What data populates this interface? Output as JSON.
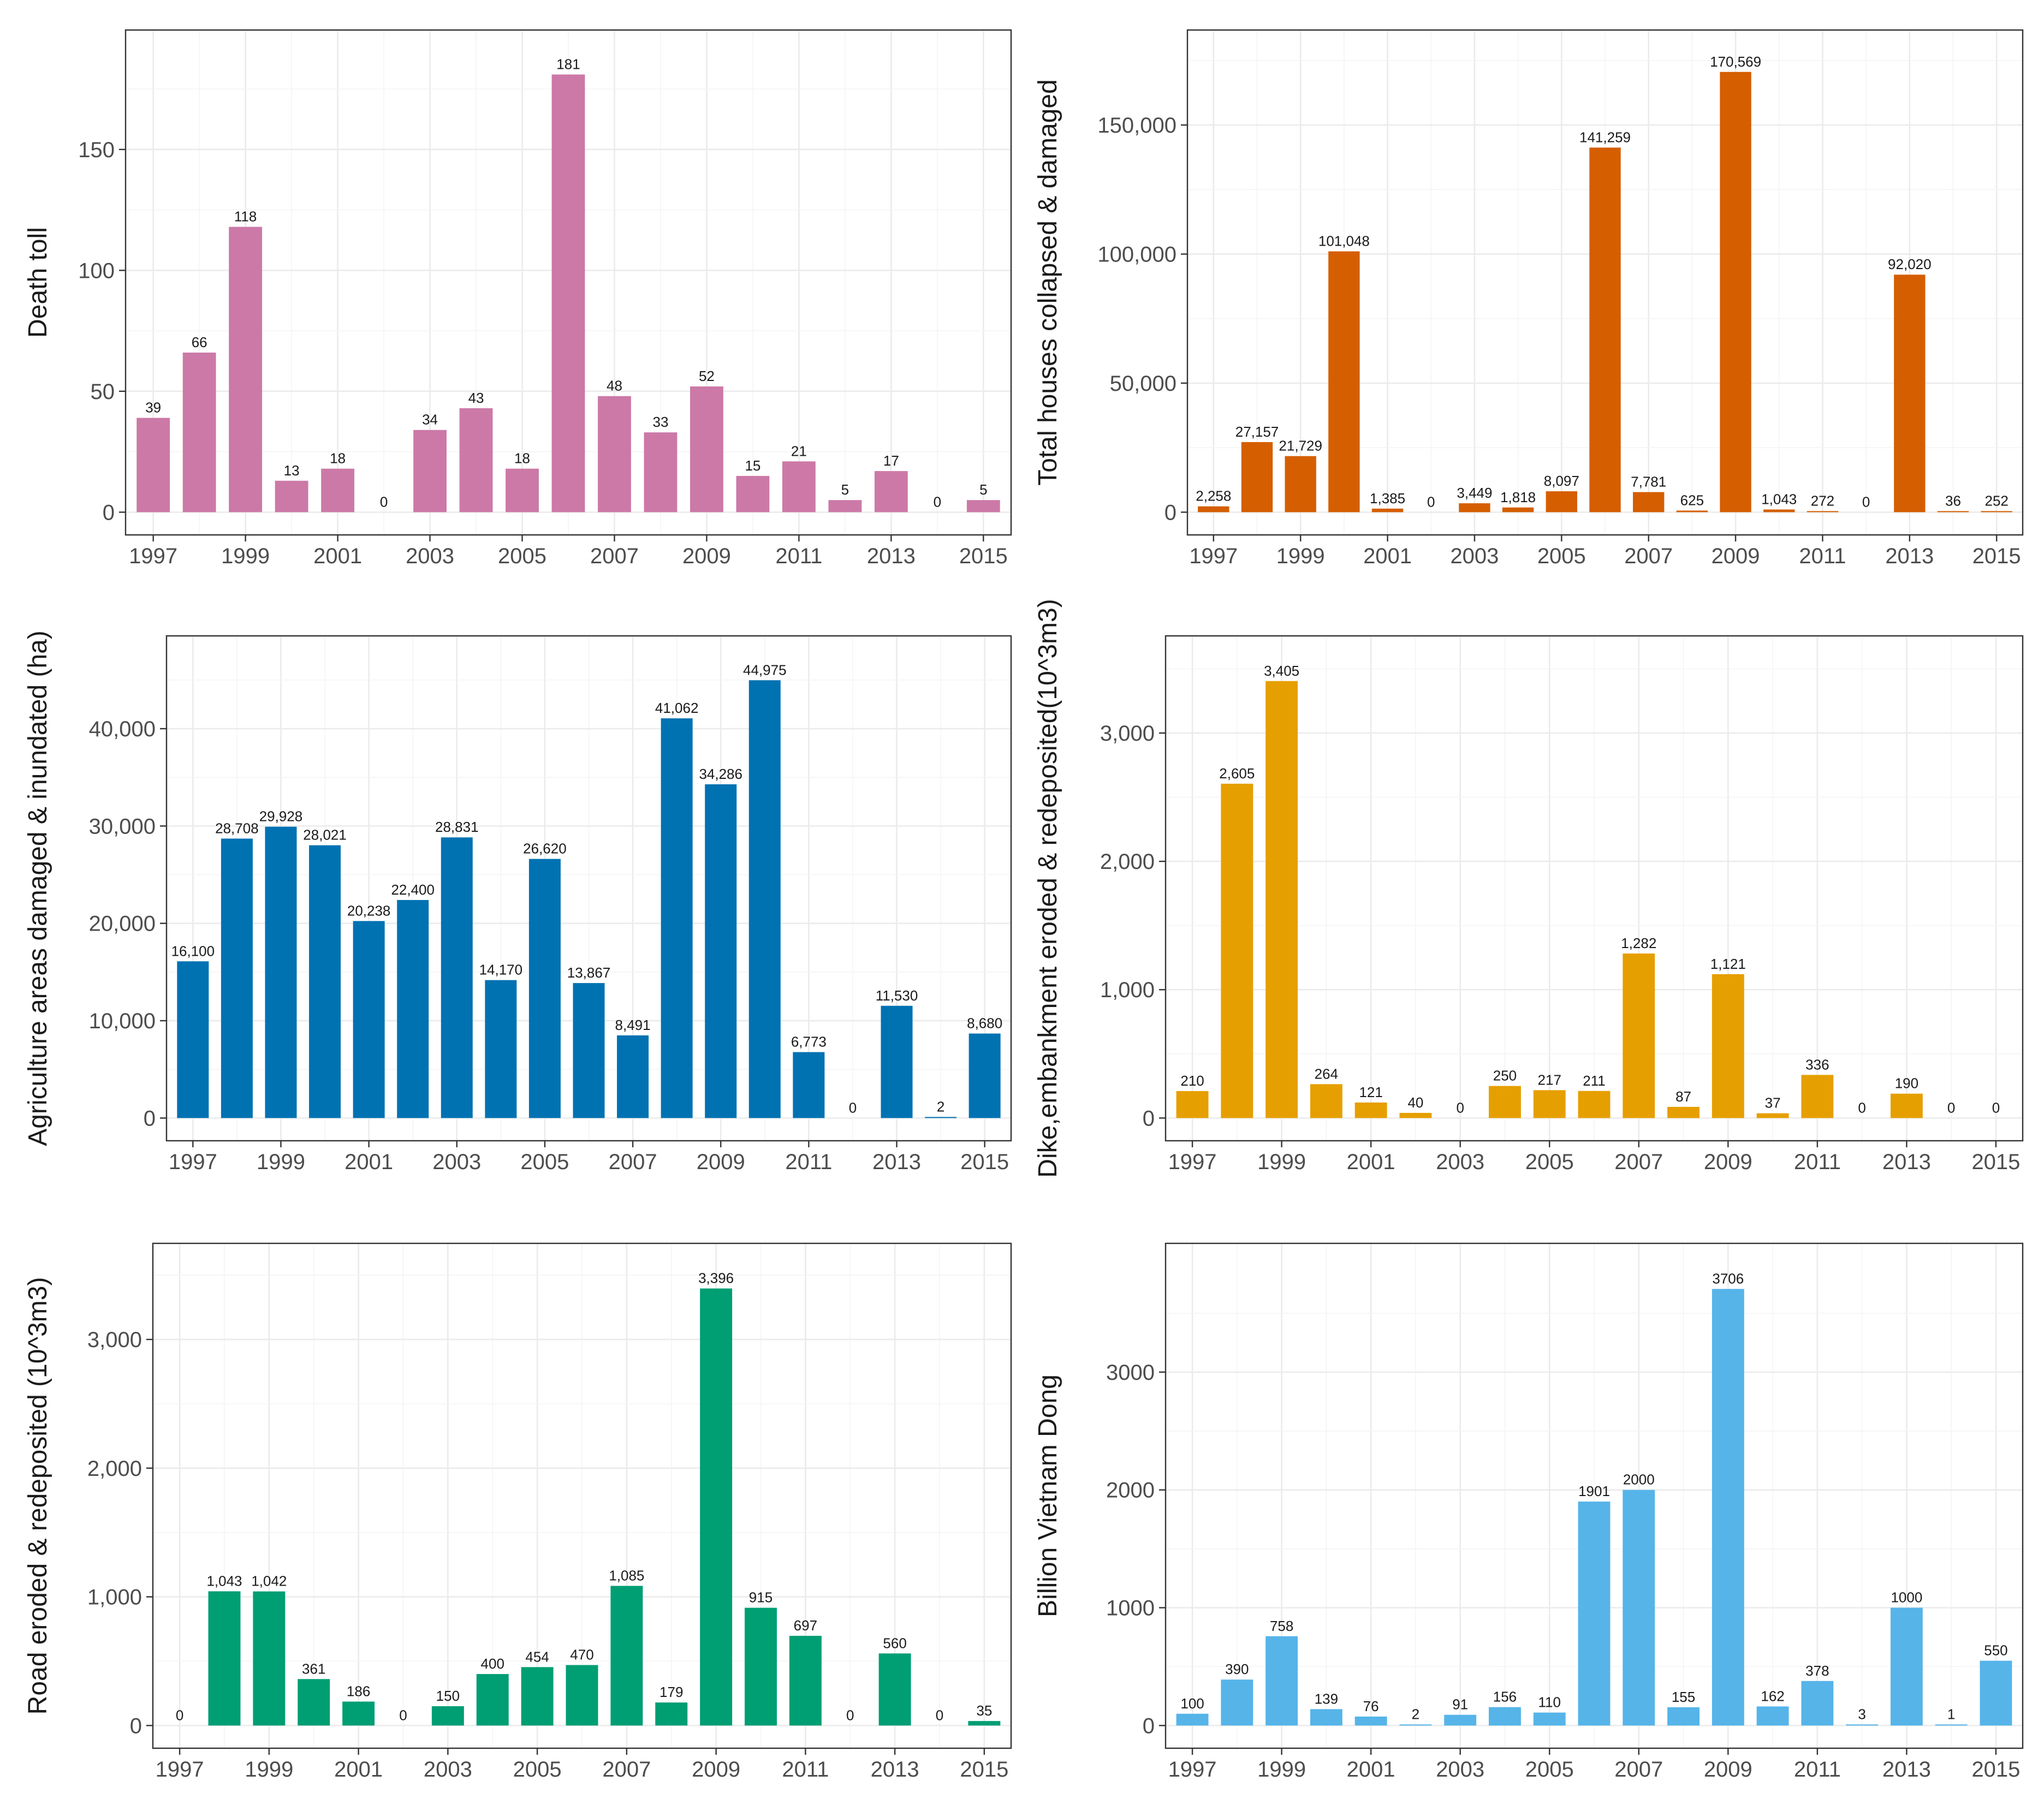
{
  "chart_data": [
    {
      "id": "death-toll",
      "type": "bar",
      "categories": [
        "1997",
        "1998",
        "1999",
        "2000",
        "2001",
        "2002",
        "2003",
        "2004",
        "2005",
        "2006",
        "2007",
        "2008",
        "2009",
        "2010",
        "2011",
        "2012",
        "2013",
        "2014",
        "2015"
      ],
      "values": [
        39,
        66,
        118,
        13,
        18,
        0,
        34,
        43,
        18,
        181,
        48,
        33,
        52,
        15,
        21,
        5,
        17,
        0,
        5
      ],
      "labels": [
        "39",
        "66",
        "118",
        "13",
        "18",
        "0",
        "34",
        "43",
        "18",
        "181",
        "48",
        "33",
        "52",
        "15",
        "21",
        "5",
        "17",
        "0",
        "5"
      ],
      "xticks": [
        "1997",
        "1999",
        "2001",
        "2003",
        "2005",
        "2007",
        "2009",
        "2011",
        "2013",
        "2015"
      ],
      "yticks": [
        0,
        50,
        100,
        150
      ],
      "ytick_labels": [
        "0",
        "50",
        "100",
        "150"
      ],
      "ylim": [
        0,
        190
      ],
      "ylabel": "Death toll",
      "xlabel": "",
      "color": "#CC79A7",
      "grid": true
    },
    {
      "id": "houses",
      "type": "bar",
      "categories": [
        "1997",
        "1998",
        "1999",
        "2000",
        "2001",
        "2002",
        "2003",
        "2004",
        "2005",
        "2006",
        "2007",
        "2008",
        "2009",
        "2010",
        "2011",
        "2012",
        "2013",
        "2014",
        "2015"
      ],
      "values": [
        2258,
        27157,
        21729,
        101048,
        1385,
        0,
        3449,
        1818,
        8097,
        141259,
        7781,
        625,
        170569,
        1043,
        272,
        0,
        92020,
        36,
        252
      ],
      "labels": [
        "2,258",
        "27,157",
        "21,729",
        "101,048",
        "1,385",
        "0",
        "3,449",
        "1,818",
        "8,097",
        "141,259",
        "7,781",
        "625",
        "170,569",
        "1,043",
        "272",
        "0",
        "92,020",
        "36",
        "252"
      ],
      "xticks": [
        "1997",
        "1999",
        "2001",
        "2003",
        "2005",
        "2007",
        "2009",
        "2011",
        "2013",
        "2015"
      ],
      "yticks": [
        0,
        50000,
        100000,
        150000
      ],
      "ytick_labels": [
        "0",
        "50,000",
        "100,000",
        "150,000"
      ],
      "ylim": [
        0,
        178000
      ],
      "ylabel": "Total houses collapsed & damaged",
      "xlabel": "",
      "color": "#D55E00",
      "grid": true
    },
    {
      "id": "agriculture",
      "type": "bar",
      "categories": [
        "1997",
        "1998",
        "1999",
        "2000",
        "2001",
        "2002",
        "2003",
        "2004",
        "2005",
        "2006",
        "2007",
        "2008",
        "2009",
        "2010",
        "2011",
        "2012",
        "2013",
        "2014",
        "2015"
      ],
      "values": [
        16100,
        28708,
        29928,
        28021,
        20238,
        22400,
        28831,
        14170,
        26620,
        13867,
        8491,
        41062,
        34286,
        44975,
        6773,
        0,
        11530,
        2,
        8680
      ],
      "labels": [
        "16,100",
        "28,708",
        "29,928",
        "28,021",
        "20,238",
        "22,400",
        "28,831",
        "14,170",
        "26,620",
        "13,867",
        "8,491",
        "41,062",
        "34,286",
        "44,975",
        "6,773",
        "0",
        "11,530",
        "2",
        "8,680"
      ],
      "xticks": [
        "1997",
        "1999",
        "2001",
        "2003",
        "2005",
        "2007",
        "2009",
        "2011",
        "2013",
        "2015"
      ],
      "yticks": [
        0,
        10000,
        20000,
        30000,
        40000
      ],
      "ytick_labels": [
        "0",
        "10,000",
        "20,000",
        "30,000",
        "40,000"
      ],
      "ylim": [
        0,
        47200
      ],
      "ylabel": "Agriculture areas damaged & inundated (ha)",
      "xlabel": "",
      "color": "#0072B2",
      "grid": true
    },
    {
      "id": "dike",
      "type": "bar",
      "categories": [
        "1997",
        "1998",
        "1999",
        "2000",
        "2001",
        "2002",
        "2003",
        "2004",
        "2005",
        "2006",
        "2007",
        "2008",
        "2009",
        "2010",
        "2011",
        "2012",
        "2013",
        "2014",
        "2015"
      ],
      "values": [
        210,
        2605,
        3405,
        264,
        121,
        40,
        0,
        250,
        217,
        211,
        1282,
        87,
        1121,
        37,
        336,
        0,
        190,
        0,
        0
      ],
      "labels": [
        "210",
        "2,605",
        "3,405",
        "264",
        "121",
        "40",
        "0",
        "250",
        "217",
        "211",
        "1,282",
        "87",
        "1,121",
        "37",
        "336",
        "0",
        "190",
        "0",
        "0"
      ],
      "xticks": [
        "1997",
        "1999",
        "2001",
        "2003",
        "2005",
        "2007",
        "2009",
        "2011",
        "2013",
        "2015"
      ],
      "yticks": [
        0,
        1000,
        2000,
        3000
      ],
      "ytick_labels": [
        "0",
        "1,000",
        "2,000",
        "3,000"
      ],
      "ylim": [
        0,
        3580
      ],
      "ylabel": "Dike,embankment eroded & redeposited(10^3m3)",
      "xlabel": "",
      "color": "#E69F00",
      "grid": true
    },
    {
      "id": "road",
      "type": "bar",
      "categories": [
        "1997",
        "1998",
        "1999",
        "2000",
        "2001",
        "2002",
        "2003",
        "2004",
        "2005",
        "2006",
        "2007",
        "2008",
        "2009",
        "2010",
        "2011",
        "2012",
        "2013",
        "2014",
        "2015"
      ],
      "values": [
        0,
        1043,
        1042,
        361,
        186,
        0,
        150,
        400,
        454,
        470,
        1085,
        179,
        3396,
        915,
        697,
        0,
        560,
        0,
        35
      ],
      "labels": [
        "0",
        "1,043",
        "1,042",
        "361",
        "186",
        "0",
        "150",
        "400",
        "454",
        "470",
        "1,085",
        "179",
        "3,396",
        "915",
        "697",
        "0",
        "560",
        "0",
        "35"
      ],
      "xticks": [
        "1997",
        "1999",
        "2001",
        "2003",
        "2005",
        "2007",
        "2009",
        "2011",
        "2013",
        "2015"
      ],
      "yticks": [
        0,
        1000,
        2000,
        3000
      ],
      "ytick_labels": [
        "0",
        "1,000",
        "2,000",
        "3,000"
      ],
      "ylim": [
        0,
        3570
      ],
      "ylabel": "Road eroded & redeposited (10^3m3)",
      "xlabel": "",
      "color": "#009E73",
      "grid": true
    },
    {
      "id": "economic",
      "type": "bar",
      "categories": [
        "1997",
        "1998",
        "1999",
        "2000",
        "2001",
        "2002",
        "2003",
        "2004",
        "2005",
        "2006",
        "2007",
        "2008",
        "2009",
        "2010",
        "2011",
        "2012",
        "2013",
        "2014",
        "2015"
      ],
      "values": [
        100,
        390,
        758,
        139,
        76,
        2,
        91,
        156,
        110,
        1901,
        2000,
        155,
        3706,
        162,
        378,
        3,
        1000,
        1,
        550
      ],
      "labels": [
        "100",
        "390",
        "758",
        "139",
        "76",
        "2",
        "91",
        "156",
        "110",
        "1901",
        "2000",
        "155",
        "3706",
        "162",
        "378",
        "3",
        "1000",
        "1",
        "550"
      ],
      "xticks": [
        "1997",
        "1999",
        "2001",
        "2003",
        "2005",
        "2007",
        "2009",
        "2011",
        "2013",
        "2015"
      ],
      "yticks": [
        0,
        1000,
        2000,
        3000
      ],
      "ytick_labels": [
        "0",
        "1000",
        "2000",
        "3000"
      ],
      "ylim": [
        0,
        3900
      ],
      "ylabel": "Billion Vietnam Dong",
      "xlabel": "",
      "color": "#56B4E9",
      "grid": true
    }
  ]
}
